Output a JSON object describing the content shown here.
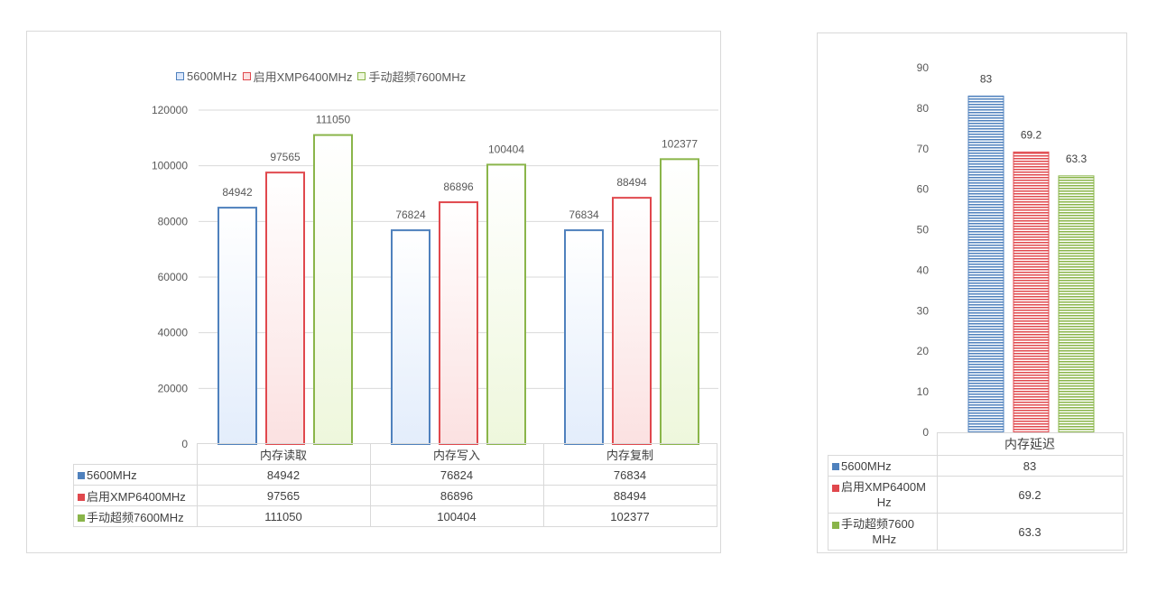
{
  "colors": {
    "s1": "#4f81bd",
    "s2": "#e0484d",
    "s3": "#8ab54a",
    "s1_light": "#e3edfb",
    "s2_light": "#fbe1e1",
    "s3_light": "#eef7dc",
    "grid": "#d9d9d9",
    "text": "#595959"
  },
  "chart_data": [
    {
      "type": "bar",
      "categories": [
        "内存读取",
        "内存写入",
        "内存复制"
      ],
      "series": [
        {
          "name": "5600MHz",
          "values": [
            84942,
            76824,
            76834
          ]
        },
        {
          "name": "启用XMP6400MHz",
          "values": [
            97565,
            86896,
            88494
          ]
        },
        {
          "name": "手动超频7600MHz",
          "values": [
            111050,
            100404,
            102377
          ]
        }
      ],
      "yticks": [
        "0",
        "20000",
        "40000",
        "60000",
        "80000",
        "100000",
        "120000"
      ],
      "ylim": [
        0,
        120000
      ],
      "legend": "top",
      "grid": true,
      "data_table": true
    },
    {
      "type": "bar",
      "categories": [
        "内存延迟"
      ],
      "series": [
        {
          "name": "5600MHz",
          "values": [
            83
          ]
        },
        {
          "name": "启用XMP6400MHz",
          "values": [
            69.2
          ]
        },
        {
          "name": "手动超频7600MHz",
          "values": [
            63.3
          ]
        }
      ],
      "yticks": [
        "0",
        "10",
        "20",
        "30",
        "40",
        "50",
        "60",
        "70",
        "80",
        "90"
      ],
      "ylim": [
        0,
        90
      ],
      "grid": false,
      "data_table": true
    }
  ],
  "left_table": {
    "rows": [
      {
        "label": "5600MHz",
        "cells": [
          "84942",
          "76824",
          "76834"
        ]
      },
      {
        "label": "启用XMP6400MHz",
        "cells": [
          "97565",
          "86896",
          "88494"
        ]
      },
      {
        "label": "手动超频7600MHz",
        "cells": [
          "111050",
          "100404",
          "102377"
        ]
      }
    ]
  },
  "right_table": {
    "header": "内存延迟",
    "rows": [
      {
        "label_line1": "5600MHz",
        "label_line2": "",
        "cell": "83"
      },
      {
        "label_line1": "启用XMP6400M",
        "label_line2": "Hz",
        "cell": "69.2"
      },
      {
        "label_line1": "手动超频7600",
        "label_line2": "MHz",
        "cell": "63.3"
      }
    ]
  }
}
